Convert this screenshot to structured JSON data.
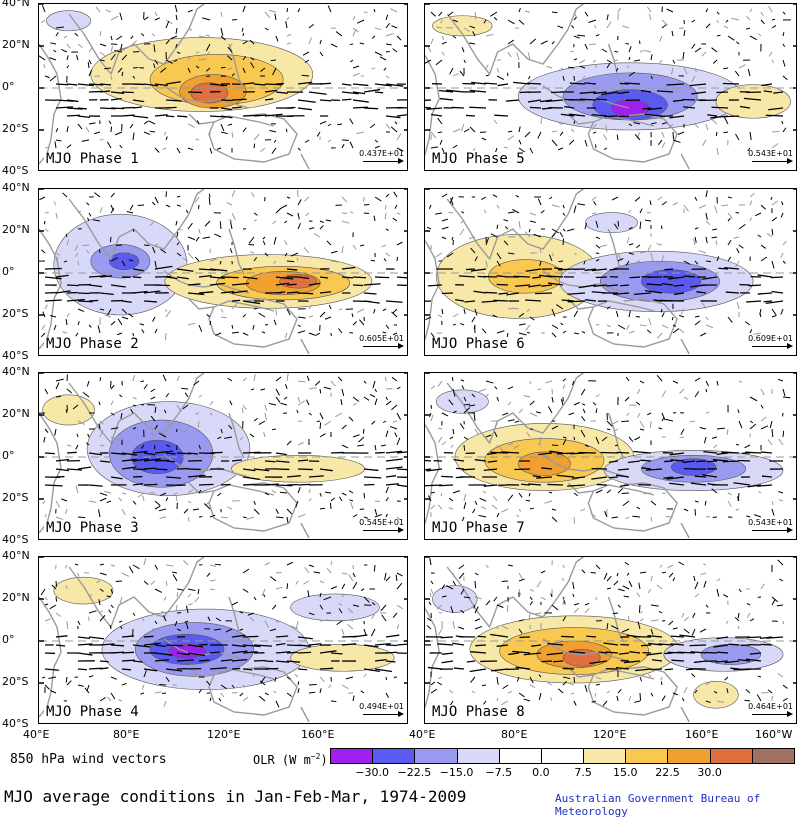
{
  "panels": [
    {
      "label": "MJO Phase 1",
      "ref_vector": "0.437E+01"
    },
    {
      "label": "MJO Phase 5",
      "ref_vector": "0.543E+01"
    },
    {
      "label": "MJO Phase 2",
      "ref_vector": "0.605E+01"
    },
    {
      "label": "MJO Phase 6",
      "ref_vector": "0.609E+01"
    },
    {
      "label": "MJO Phase 3",
      "ref_vector": "0.545E+01"
    },
    {
      "label": "MJO Phase 7",
      "ref_vector": "0.543E+01"
    },
    {
      "label": "MJO Phase 4",
      "ref_vector": "0.494E+01"
    },
    {
      "label": "MJO Phase 8",
      "ref_vector": "0.464E+01"
    }
  ],
  "lat_ticks": [
    "40°N",
    "20°N",
    "0°",
    "20°S",
    "40°S"
  ],
  "lon_ticks_left": [
    "40°E",
    "80°E",
    "120°E",
    "160°E"
  ],
  "lon_ticks_right": [
    "40°E",
    "80°E",
    "120°E",
    "160°E",
    "160°W"
  ],
  "legend": {
    "wind_label": "850 hPa wind vectors",
    "olr_label": "OLR (W m",
    "olr_exp": "−2",
    "olr_close": ")",
    "ticks": [
      "−30.0",
      "−22.5",
      "−15.0",
      "−7.5",
      "0.0",
      "7.5",
      "15.0",
      "22.5",
      "30.0"
    ],
    "colors": [
      "#a020f0",
      "#5a5af0",
      "#9a9af0",
      "#d8d8f8",
      "#ffffff",
      "#ffffff",
      "#f8e8a8",
      "#f8c850",
      "#f0a030",
      "#e07040",
      "#a07060"
    ]
  },
  "footer": {
    "title": "MJO average conditions in Jan-Feb-Mar, 1974-2009",
    "credit": "Australian Government Bureau of Meteorology",
    "credit_color": "#2030c0"
  },
  "olr_colors": {
    "neg_strong": "#a020f0",
    "neg_mid": "#5a5af0",
    "neg_light": "#9a9af0",
    "neg_faint": "#d8d8f8",
    "pos_faint": "#f8e8a8",
    "pos_light": "#f8c850",
    "pos_mid": "#f0a030",
    "pos_strong": "#e07040"
  },
  "icons": {
    "coastline": "coastline-outline",
    "vector": "wind-arrow-icon"
  }
}
